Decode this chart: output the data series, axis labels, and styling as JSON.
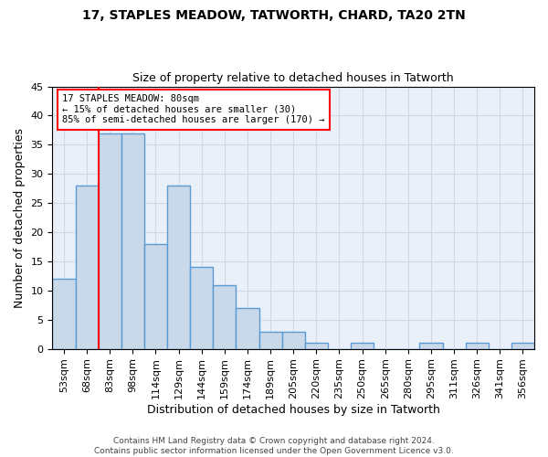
{
  "title1": "17, STAPLES MEADOW, TATWORTH, CHARD, TA20 2TN",
  "title2": "Size of property relative to detached houses in Tatworth",
  "xlabel": "Distribution of detached houses by size in Tatworth",
  "ylabel": "Number of detached properties",
  "bin_labels": [
    "53sqm",
    "68sqm",
    "83sqm",
    "98sqm",
    "114sqm",
    "129sqm",
    "144sqm",
    "159sqm",
    "174sqm",
    "189sqm",
    "205sqm",
    "220sqm",
    "235sqm",
    "250sqm",
    "265sqm",
    "280sqm",
    "295sqm",
    "311sqm",
    "326sqm",
    "341sqm",
    "356sqm"
  ],
  "bar_heights": [
    12,
    28,
    37,
    37,
    18,
    28,
    14,
    11,
    7,
    3,
    3,
    1,
    0,
    1,
    0,
    0,
    1,
    0,
    1,
    0,
    1
  ],
  "bar_color": "#c9d9ea",
  "bar_edge_color": "#5b9bd5",
  "bar_edge_width": 1.0,
  "red_line_x": 1.5,
  "annotation_text": "17 STAPLES MEADOW: 80sqm\n← 15% of detached houses are smaller (30)\n85% of semi-detached houses are larger (170) →",
  "annotation_box_color": "white",
  "annotation_box_edge_color": "red",
  "ylim": [
    0,
    45
  ],
  "yticks": [
    0,
    5,
    10,
    15,
    20,
    25,
    30,
    35,
    40,
    45
  ],
  "grid_color": "#d0d8e8",
  "background_color": "#eaf0f8",
  "footer_text": "Contains HM Land Registry data © Crown copyright and database right 2024.\nContains public sector information licensed under the Open Government Licence v3.0.",
  "title1_fontsize": 10,
  "title2_fontsize": 9,
  "xlabel_fontsize": 9,
  "ylabel_fontsize": 9,
  "tick_fontsize": 8,
  "footer_fontsize": 6.5
}
